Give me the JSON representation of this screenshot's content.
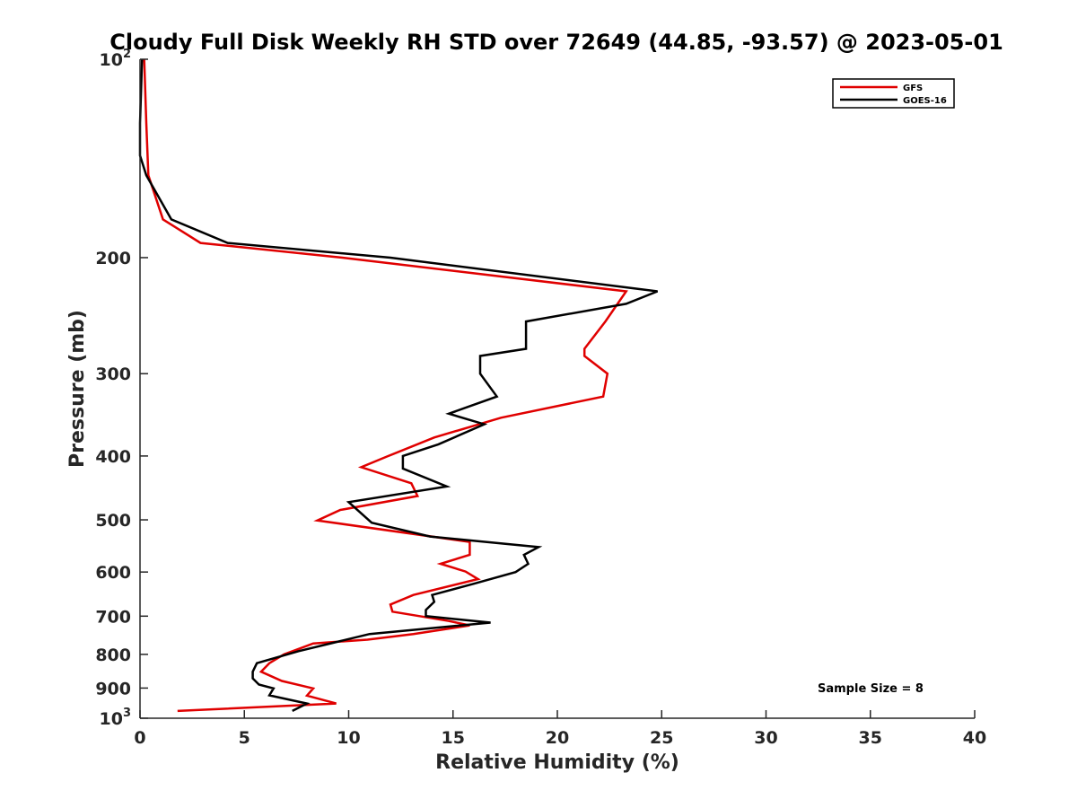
{
  "chart_data": {
    "type": "line",
    "title": "Cloudy Full Disk Weekly RH STD over 72649 (44.85, -93.57) @ 2023-05-01",
    "xlabel": "Relative Humidity (%)",
    "ylabel": "Pressure (mb)",
    "xlim": [
      0,
      40
    ],
    "ylim": [
      100,
      1000
    ],
    "y_scale": "log",
    "y_reversed": true,
    "grid": false,
    "legend_position": "top-right",
    "x_ticks": [
      0,
      5,
      10,
      15,
      20,
      25,
      30,
      35,
      40
    ],
    "x_tick_labels": [
      "0",
      "5",
      "10",
      "15",
      "20",
      "25",
      "30",
      "35",
      "40"
    ],
    "y_ticks": [
      {
        "value": 100,
        "base": "10",
        "sup": "2"
      },
      {
        "value": 200,
        "base": "200",
        "sup": ""
      },
      {
        "value": 300,
        "base": "300",
        "sup": ""
      },
      {
        "value": 400,
        "base": "400",
        "sup": ""
      },
      {
        "value": 500,
        "base": "500",
        "sup": ""
      },
      {
        "value": 600,
        "base": "600",
        "sup": ""
      },
      {
        "value": 700,
        "base": "700",
        "sup": ""
      },
      {
        "value": 800,
        "base": "800",
        "sup": ""
      },
      {
        "value": 900,
        "base": "900",
        "sup": ""
      },
      {
        "value": 1000,
        "base": "10",
        "sup": "3"
      }
    ],
    "annotation": "Sample Size = 8",
    "series": [
      {
        "name": "GFS",
        "color": "#e00000",
        "points": [
          [
            0.2,
            100
          ],
          [
            0.3,
            125
          ],
          [
            0.4,
            150
          ],
          [
            1.1,
            175
          ],
          [
            2.9,
            190
          ],
          [
            9.7,
            200
          ],
          [
            23.3,
            225
          ],
          [
            22.3,
            250
          ],
          [
            21.3,
            275
          ],
          [
            21.3,
            282
          ],
          [
            22.4,
            300
          ],
          [
            22.2,
            325
          ],
          [
            17.3,
            350
          ],
          [
            14.1,
            375
          ],
          [
            11.9,
            400
          ],
          [
            10.6,
            416
          ],
          [
            13.0,
            440
          ],
          [
            13.3,
            460
          ],
          [
            9.6,
            483
          ],
          [
            8.5,
            501
          ],
          [
            15.8,
            540
          ],
          [
            15.8,
            565
          ],
          [
            14.4,
            583
          ],
          [
            15.6,
            599
          ],
          [
            16.2,
            615
          ],
          [
            13.1,
            650
          ],
          [
            12.0,
            672
          ],
          [
            12.1,
            689
          ],
          [
            14.8,
            712
          ],
          [
            15.8,
            723
          ],
          [
            13.1,
            745
          ],
          [
            10.9,
            760
          ],
          [
            8.3,
            770
          ],
          [
            6.9,
            800
          ],
          [
            6.2,
            825
          ],
          [
            5.8,
            850
          ],
          [
            6.8,
            878
          ],
          [
            8.3,
            901
          ],
          [
            8.0,
            924
          ],
          [
            9.4,
            950
          ],
          [
            1.8,
            975
          ]
        ]
      },
      {
        "name": "GOES-16",
        "color": "#000000",
        "points": [
          [
            0.1,
            100
          ],
          [
            0.0,
            125
          ],
          [
            0.0,
            140
          ],
          [
            0.3,
            150
          ],
          [
            1.5,
            175
          ],
          [
            4.2,
            190
          ],
          [
            12.0,
            200
          ],
          [
            24.8,
            225
          ],
          [
            23.3,
            235
          ],
          [
            18.5,
            250
          ],
          [
            18.5,
            275
          ],
          [
            16.3,
            282
          ],
          [
            16.3,
            300
          ],
          [
            17.1,
            325
          ],
          [
            14.8,
            345
          ],
          [
            16.5,
            358
          ],
          [
            14.3,
            384
          ],
          [
            12.6,
            400
          ],
          [
            12.6,
            418
          ],
          [
            14.7,
            445
          ],
          [
            10.0,
            470
          ],
          [
            11.1,
            505
          ],
          [
            13.9,
            530
          ],
          [
            19.1,
            550
          ],
          [
            18.4,
            565
          ],
          [
            18.6,
            583
          ],
          [
            18.0,
            600
          ],
          [
            16.0,
            625
          ],
          [
            14.0,
            650
          ],
          [
            14.1,
            666
          ],
          [
            13.7,
            685
          ],
          [
            13.7,
            700
          ],
          [
            16.8,
            716
          ],
          [
            11.0,
            745
          ],
          [
            9.5,
            765
          ],
          [
            7.6,
            791
          ],
          [
            5.6,
            825
          ],
          [
            5.4,
            850
          ],
          [
            5.4,
            870
          ],
          [
            5.7,
            889
          ],
          [
            6.4,
            901
          ],
          [
            6.2,
            923
          ],
          [
            8.0,
            950
          ],
          [
            7.3,
            975
          ]
        ]
      }
    ]
  }
}
